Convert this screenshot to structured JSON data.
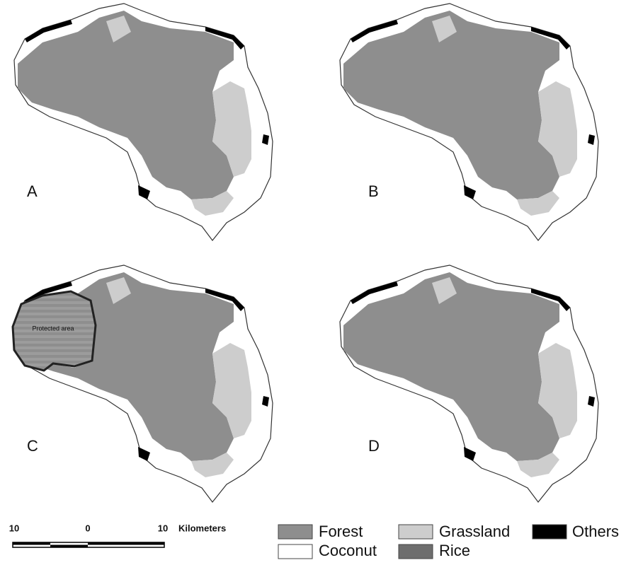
{
  "panels": [
    {
      "label": "A"
    },
    {
      "label": "B"
    },
    {
      "label": "C"
    },
    {
      "label": "D"
    }
  ],
  "protected_area": "Protected area",
  "scale_bar": {
    "ticks": [
      10,
      0,
      10
    ],
    "unit": "Kilometers"
  },
  "legend": [
    {
      "label": "Forest",
      "color": "#8e8e8e"
    },
    {
      "label": "Coconut",
      "color": "#ffffff"
    },
    {
      "label": "Grassland",
      "color": "#cdcdcd"
    },
    {
      "label": "Rice",
      "color": "#6e6e6e"
    },
    {
      "label": "Others",
      "color": "#000000"
    }
  ]
}
